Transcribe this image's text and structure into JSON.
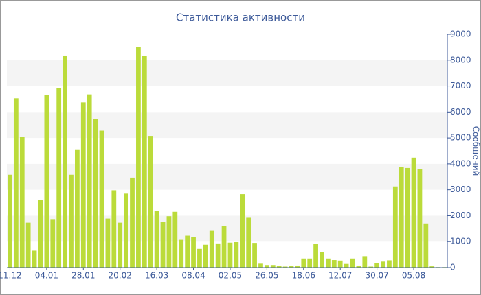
{
  "chart_data": {
    "type": "bar",
    "title": "Статистика активности",
    "y_label": "Сообщений",
    "categories": [
      "11.12",
      null,
      null,
      null,
      null,
      null,
      "04.01",
      null,
      null,
      null,
      null,
      null,
      "28.01",
      null,
      null,
      null,
      null,
      null,
      "20.02",
      null,
      null,
      null,
      null,
      null,
      "16.03",
      null,
      null,
      null,
      null,
      null,
      "08.04",
      null,
      null,
      null,
      null,
      null,
      "02.05",
      null,
      null,
      null,
      null,
      null,
      "26.05",
      null,
      null,
      null,
      null,
      null,
      "18.06",
      null,
      null,
      null,
      null,
      null,
      "12.07",
      null,
      null,
      null,
      null,
      null,
      "30.07",
      null,
      null,
      null,
      null,
      null,
      "05.08",
      null,
      null,
      null,
      null,
      null
    ],
    "values": [
      3580,
      6530,
      5030,
      1730,
      650,
      2600,
      6650,
      1870,
      6930,
      8180,
      3580,
      4560,
      6370,
      6680,
      5720,
      5280,
      1890,
      2980,
      1730,
      2850,
      3470,
      8520,
      8170,
      5080,
      2190,
      1760,
      1980,
      2150,
      1070,
      1230,
      1190,
      720,
      880,
      1440,
      930,
      1600,
      960,
      980,
      2830,
      1920,
      950,
      150,
      100,
      100,
      60,
      40,
      60,
      80,
      350,
      350,
      920,
      590,
      350,
      290,
      270,
      140,
      350,
      80,
      440,
      40,
      180,
      230,
      280,
      3130,
      3870,
      3840,
      4240,
      3810,
      1700,
      50,
      20,
      20
    ],
    "color": "#bbdb3a",
    "ylim": [
      0,
      9000
    ],
    "yticks": [
      0,
      1000,
      2000,
      3000,
      4000,
      5000,
      6000,
      7000,
      8000,
      9000
    ],
    "grid": "bands"
  }
}
